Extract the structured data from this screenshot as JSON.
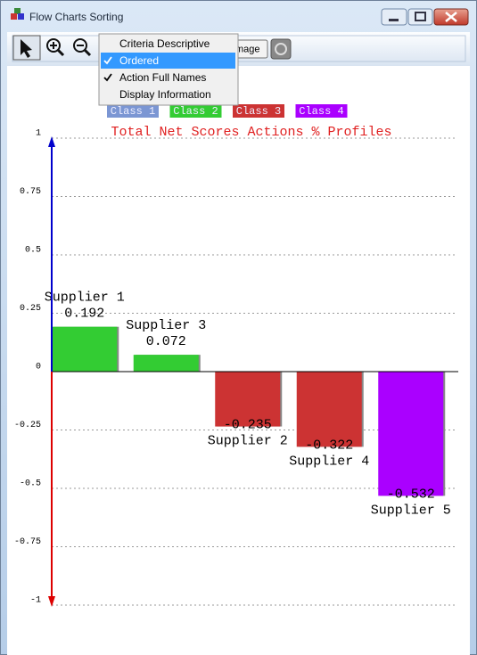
{
  "window": {
    "title": "Flow Charts Sorting"
  },
  "toolbar": {
    "button": "mage"
  },
  "menu": {
    "items": [
      {
        "label": "Criteria Descriptive",
        "checked": false,
        "highlighted": false
      },
      {
        "label": "Ordered",
        "checked": true,
        "highlighted": true
      },
      {
        "label": "Action Full Names",
        "checked": true,
        "highlighted": false
      },
      {
        "label": "Display Information",
        "checked": false,
        "highlighted": false
      }
    ]
  },
  "chart_data": {
    "type": "bar",
    "title": "Total Net Scores Actions % Profiles",
    "legend": [
      {
        "name": "Class 1",
        "color": "#7b96d3"
      },
      {
        "name": "Class 2",
        "color": "#33cc33"
      },
      {
        "name": "Class 3",
        "color": "#cc3333"
      },
      {
        "name": "Class 4",
        "color": "#aa00ff"
      }
    ],
    "categories": [
      "Supplier 1",
      "Supplier 3",
      "Supplier 2",
      "Supplier 4",
      "Supplier 5"
    ],
    "values": [
      0.192,
      0.072,
      -0.235,
      -0.322,
      -0.532
    ],
    "colors": [
      "#33cc33",
      "#33cc33",
      "#cc3333",
      "#cc3333",
      "#aa00ff"
    ],
    "ylim": [
      -1,
      1
    ],
    "yticks": [
      1,
      0.75,
      0.5,
      0.25,
      0,
      -0.25,
      -0.5,
      -0.75,
      -1
    ],
    "grid": true
  }
}
